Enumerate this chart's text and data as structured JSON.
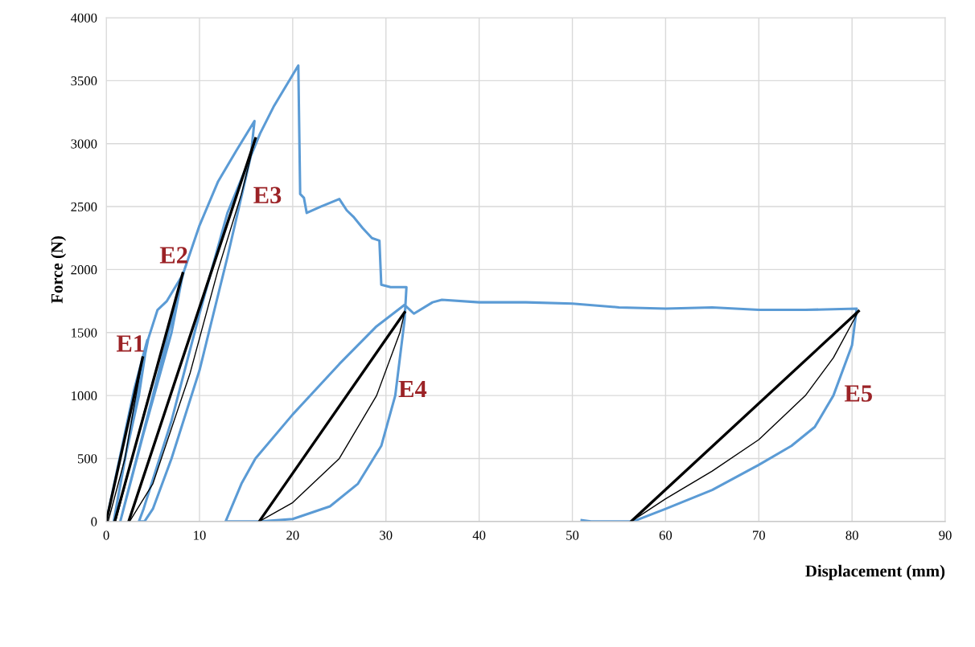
{
  "chart_data": {
    "type": "line",
    "xlabel": "Displacement (mm)",
    "ylabel": "Force (N)",
    "xlim": [
      0,
      90
    ],
    "xticks": [
      0,
      10,
      20,
      30,
      40,
      50,
      60,
      70,
      80,
      90
    ],
    "ylim": [
      0,
      4000
    ],
    "yticks": [
      0,
      500,
      1000,
      1500,
      2000,
      2500,
      3000,
      3500,
      4000
    ],
    "grid": true,
    "legend": false,
    "marker": "none",
    "line_style": "solid",
    "series": [
      {
        "color": "#5b9bd5",
        "x": [
          0,
          2,
          3,
          4.4,
          3.5,
          2,
          0.8,
          3,
          4.5,
          5.5,
          6.5,
          8.2,
          7,
          4,
          1.5,
          5,
          8.3,
          10,
          12,
          14,
          15.9,
          15.5,
          13,
          10,
          7,
          5,
          4.1,
          3.5,
          4,
          7,
          10,
          13,
          16.5,
          18,
          20.6,
          20.8,
          21.2,
          21.5,
          23,
          25,
          25.8,
          26.5,
          27.5,
          28.5,
          29.3,
          29.5,
          30.5,
          32.2,
          32,
          31,
          29.5,
          27,
          24,
          20,
          16.5,
          14.5,
          12.8,
          14.5,
          16,
          20,
          25,
          29,
          32,
          33,
          35,
          36,
          40,
          45,
          50,
          55,
          60,
          65,
          70,
          75,
          80.5,
          80,
          78,
          76,
          73.5,
          70,
          65,
          60,
          56.5,
          52,
          51
        ],
        "values": [
          0,
          700,
          1050,
          1440,
          1000,
          500,
          0,
          900,
          1450,
          1680,
          1750,
          1960,
          1500,
          700,
          0,
          1000,
          1980,
          2350,
          2700,
          2950,
          3180,
          2900,
          2100,
          1200,
          500,
          100,
          0,
          0,
          100,
          800,
          1650,
          2450,
          3080,
          3300,
          3620,
          2600,
          2570,
          2450,
          2500,
          2560,
          2470,
          2420,
          2330,
          2250,
          2230,
          1880,
          1860,
          1860,
          1600,
          1000,
          600,
          300,
          120,
          20,
          0,
          0,
          0,
          300,
          500,
          850,
          1250,
          1550,
          1720,
          1650,
          1740,
          1760,
          1740,
          1740,
          1730,
          1700,
          1690,
          1700,
          1680,
          1680,
          1690,
          1400,
          1000,
          750,
          600,
          450,
          250,
          100,
          0,
          0,
          10
        ]
      },
      {
        "color": "#000000",
        "x": [
          0,
          3.9
        ],
        "values": [
          0,
          1300
        ]
      },
      {
        "color": "#000000",
        "x": [
          0.2,
          2,
          3.9
        ],
        "values": [
          0,
          500,
          1300
        ]
      },
      {
        "color": "#000000",
        "x": [
          0.9,
          8.2
        ],
        "values": [
          0,
          1970
        ]
      },
      {
        "color": "#000000",
        "x": [
          1,
          4,
          7,
          8.2
        ],
        "values": [
          0,
          850,
          1650,
          1970
        ]
      },
      {
        "color": "#000000",
        "x": [
          2.4,
          16
        ],
        "values": [
          0,
          3040
        ]
      },
      {
        "color": "#000000",
        "x": [
          2.5,
          5,
          9,
          12,
          14.5,
          16
        ],
        "values": [
          0,
          300,
          1180,
          2000,
          2600,
          3040
        ]
      },
      {
        "color": "#000000",
        "x": [
          16.4,
          32
        ],
        "values": [
          0,
          1660
        ]
      },
      {
        "color": "#000000",
        "x": [
          16.4,
          20,
          25,
          29,
          31.5,
          32
        ],
        "values": [
          0,
          150,
          500,
          1000,
          1500,
          1660
        ]
      },
      {
        "color": "#000000",
        "x": [
          56.3,
          80.7
        ],
        "values": [
          0,
          1670
        ]
      },
      {
        "color": "#000000",
        "x": [
          56.3,
          60,
          65,
          70,
          75,
          78,
          80.7
        ],
        "values": [
          0,
          180,
          400,
          650,
          1000,
          1300,
          1670
        ]
      }
    ],
    "annotations": [
      "E1",
      "E2",
      "E3",
      "E4",
      "E5"
    ]
  }
}
